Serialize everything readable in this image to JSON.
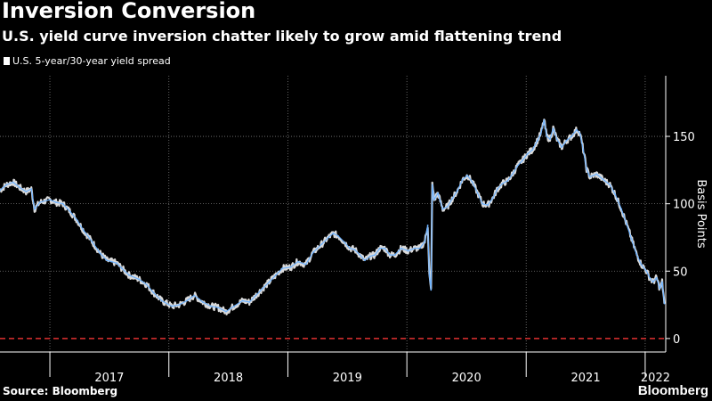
{
  "chart_data": {
    "type": "line",
    "title": "Inversion Conversion",
    "subtitle": "U.S. yield curve inversion chatter likely to grow amid flattening trend",
    "ylabel": "Basis Points",
    "xlabel": "",
    "ylim": [
      -10,
      195
    ],
    "xlim": [
      "2016-08-01",
      "2022-03-05"
    ],
    "y_ticks": [
      0,
      50,
      100,
      150
    ],
    "x_year_labels": [
      "2017",
      "2018",
      "2019",
      "2020",
      "2021",
      "2022"
    ],
    "grid": true,
    "legend_position": "top-left",
    "reference_line": {
      "y": 0,
      "color": "#e03131",
      "style": "dashed"
    },
    "series": [
      {
        "name": "U.S. 5-year/30-year yield spread",
        "color": "#6fb3ff",
        "points": [
          [
            "2016-08-01",
            110
          ],
          [
            "2016-08-20",
            114
          ],
          [
            "2016-09-10",
            116
          ],
          [
            "2016-10-01",
            112
          ],
          [
            "2016-10-20",
            109
          ],
          [
            "2016-11-05",
            111
          ],
          [
            "2016-11-15",
            96
          ],
          [
            "2016-12-01",
            101
          ],
          [
            "2017-01-01",
            103
          ],
          [
            "2017-01-20",
            101
          ],
          [
            "2017-02-10",
            100
          ],
          [
            "2017-03-05",
            94
          ],
          [
            "2017-03-25",
            88
          ],
          [
            "2017-04-15",
            80
          ],
          [
            "2017-05-10",
            72
          ],
          [
            "2017-06-05",
            63
          ],
          [
            "2017-06-25",
            58
          ],
          [
            "2017-07-10",
            57
          ],
          [
            "2017-07-25",
            56
          ],
          [
            "2017-08-10",
            52
          ],
          [
            "2017-09-01",
            47
          ],
          [
            "2017-10-01",
            44
          ],
          [
            "2017-10-25",
            40
          ],
          [
            "2017-11-15",
            34
          ],
          [
            "2017-12-10",
            28
          ],
          [
            "2018-01-10",
            24
          ],
          [
            "2018-02-01",
            25
          ],
          [
            "2018-02-25",
            28
          ],
          [
            "2018-03-20",
            32
          ],
          [
            "2018-04-15",
            27
          ],
          [
            "2018-05-10",
            24
          ],
          [
            "2018-06-01",
            23
          ],
          [
            "2018-06-25",
            20
          ],
          [
            "2018-07-20",
            24
          ],
          [
            "2018-08-15",
            28
          ],
          [
            "2018-09-05",
            27
          ],
          [
            "2018-09-25",
            32
          ],
          [
            "2018-10-15",
            37
          ],
          [
            "2018-11-05",
            42
          ],
          [
            "2018-11-25",
            47
          ],
          [
            "2018-12-15",
            52
          ],
          [
            "2019-01-10",
            53
          ],
          [
            "2019-02-01",
            57
          ],
          [
            "2019-02-25",
            55
          ],
          [
            "2019-03-20",
            64
          ],
          [
            "2019-04-15",
            70
          ],
          [
            "2019-05-05",
            75
          ],
          [
            "2019-05-20",
            78
          ],
          [
            "2019-06-05",
            76
          ],
          [
            "2019-06-25",
            71
          ],
          [
            "2019-07-10",
            67
          ],
          [
            "2019-07-25",
            66
          ],
          [
            "2019-08-10",
            62
          ],
          [
            "2019-08-25",
            58
          ],
          [
            "2019-09-10",
            61
          ],
          [
            "2019-09-25",
            62
          ],
          [
            "2019-10-10",
            67
          ],
          [
            "2019-10-25",
            67
          ],
          [
            "2019-11-10",
            62
          ],
          [
            "2019-11-25",
            62
          ],
          [
            "2019-12-15",
            67
          ],
          [
            "2020-01-05",
            65
          ],
          [
            "2020-01-25",
            67
          ],
          [
            "2020-02-10",
            67
          ],
          [
            "2020-02-25",
            72
          ],
          [
            "2020-03-05",
            84
          ],
          [
            "2020-03-10",
            47
          ],
          [
            "2020-03-15",
            36
          ],
          [
            "2020-03-19",
            114
          ],
          [
            "2020-03-25",
            103
          ],
          [
            "2020-04-05",
            108
          ],
          [
            "2020-04-20",
            96
          ],
          [
            "2020-05-05",
            98
          ],
          [
            "2020-05-20",
            104
          ],
          [
            "2020-06-05",
            110
          ],
          [
            "2020-06-20",
            118
          ],
          [
            "2020-07-05",
            121
          ],
          [
            "2020-07-20",
            116
          ],
          [
            "2020-08-05",
            108
          ],
          [
            "2020-08-20",
            100
          ],
          [
            "2020-09-05",
            99
          ],
          [
            "2020-09-20",
            104
          ],
          [
            "2020-10-05",
            111
          ],
          [
            "2020-10-20",
            115
          ],
          [
            "2020-11-05",
            117
          ],
          [
            "2020-11-20",
            122
          ],
          [
            "2020-12-05",
            128
          ],
          [
            "2020-12-20",
            132
          ],
          [
            "2021-01-05",
            137
          ],
          [
            "2021-01-20",
            140
          ],
          [
            "2021-02-05",
            147
          ],
          [
            "2021-02-15",
            152
          ],
          [
            "2021-02-25",
            162
          ],
          [
            "2021-03-05",
            150
          ],
          [
            "2021-03-15",
            148
          ],
          [
            "2021-03-25",
            156
          ],
          [
            "2021-04-05",
            148
          ],
          [
            "2021-04-20",
            142
          ],
          [
            "2021-05-05",
            147
          ],
          [
            "2021-05-20",
            150
          ],
          [
            "2021-06-05",
            155
          ],
          [
            "2021-06-15",
            152
          ],
          [
            "2021-06-25",
            140
          ],
          [
            "2021-07-05",
            126
          ],
          [
            "2021-07-15",
            120
          ],
          [
            "2021-08-05",
            122
          ],
          [
            "2021-08-25",
            118
          ],
          [
            "2021-09-15",
            114
          ],
          [
            "2021-10-01",
            107
          ],
          [
            "2021-10-20",
            96
          ],
          [
            "2021-11-05",
            85
          ],
          [
            "2021-11-20",
            74
          ],
          [
            "2021-12-05",
            63
          ],
          [
            "2021-12-20",
            55
          ],
          [
            "2022-01-05",
            50
          ],
          [
            "2022-01-15",
            45
          ],
          [
            "2022-01-25",
            42
          ],
          [
            "2022-02-05",
            45
          ],
          [
            "2022-02-15",
            37
          ],
          [
            "2022-02-22",
            42
          ],
          [
            "2022-03-01",
            26
          ]
        ]
      }
    ]
  },
  "footer": {
    "source": "Source: Bloomberg",
    "brand": "Bloomberg"
  }
}
